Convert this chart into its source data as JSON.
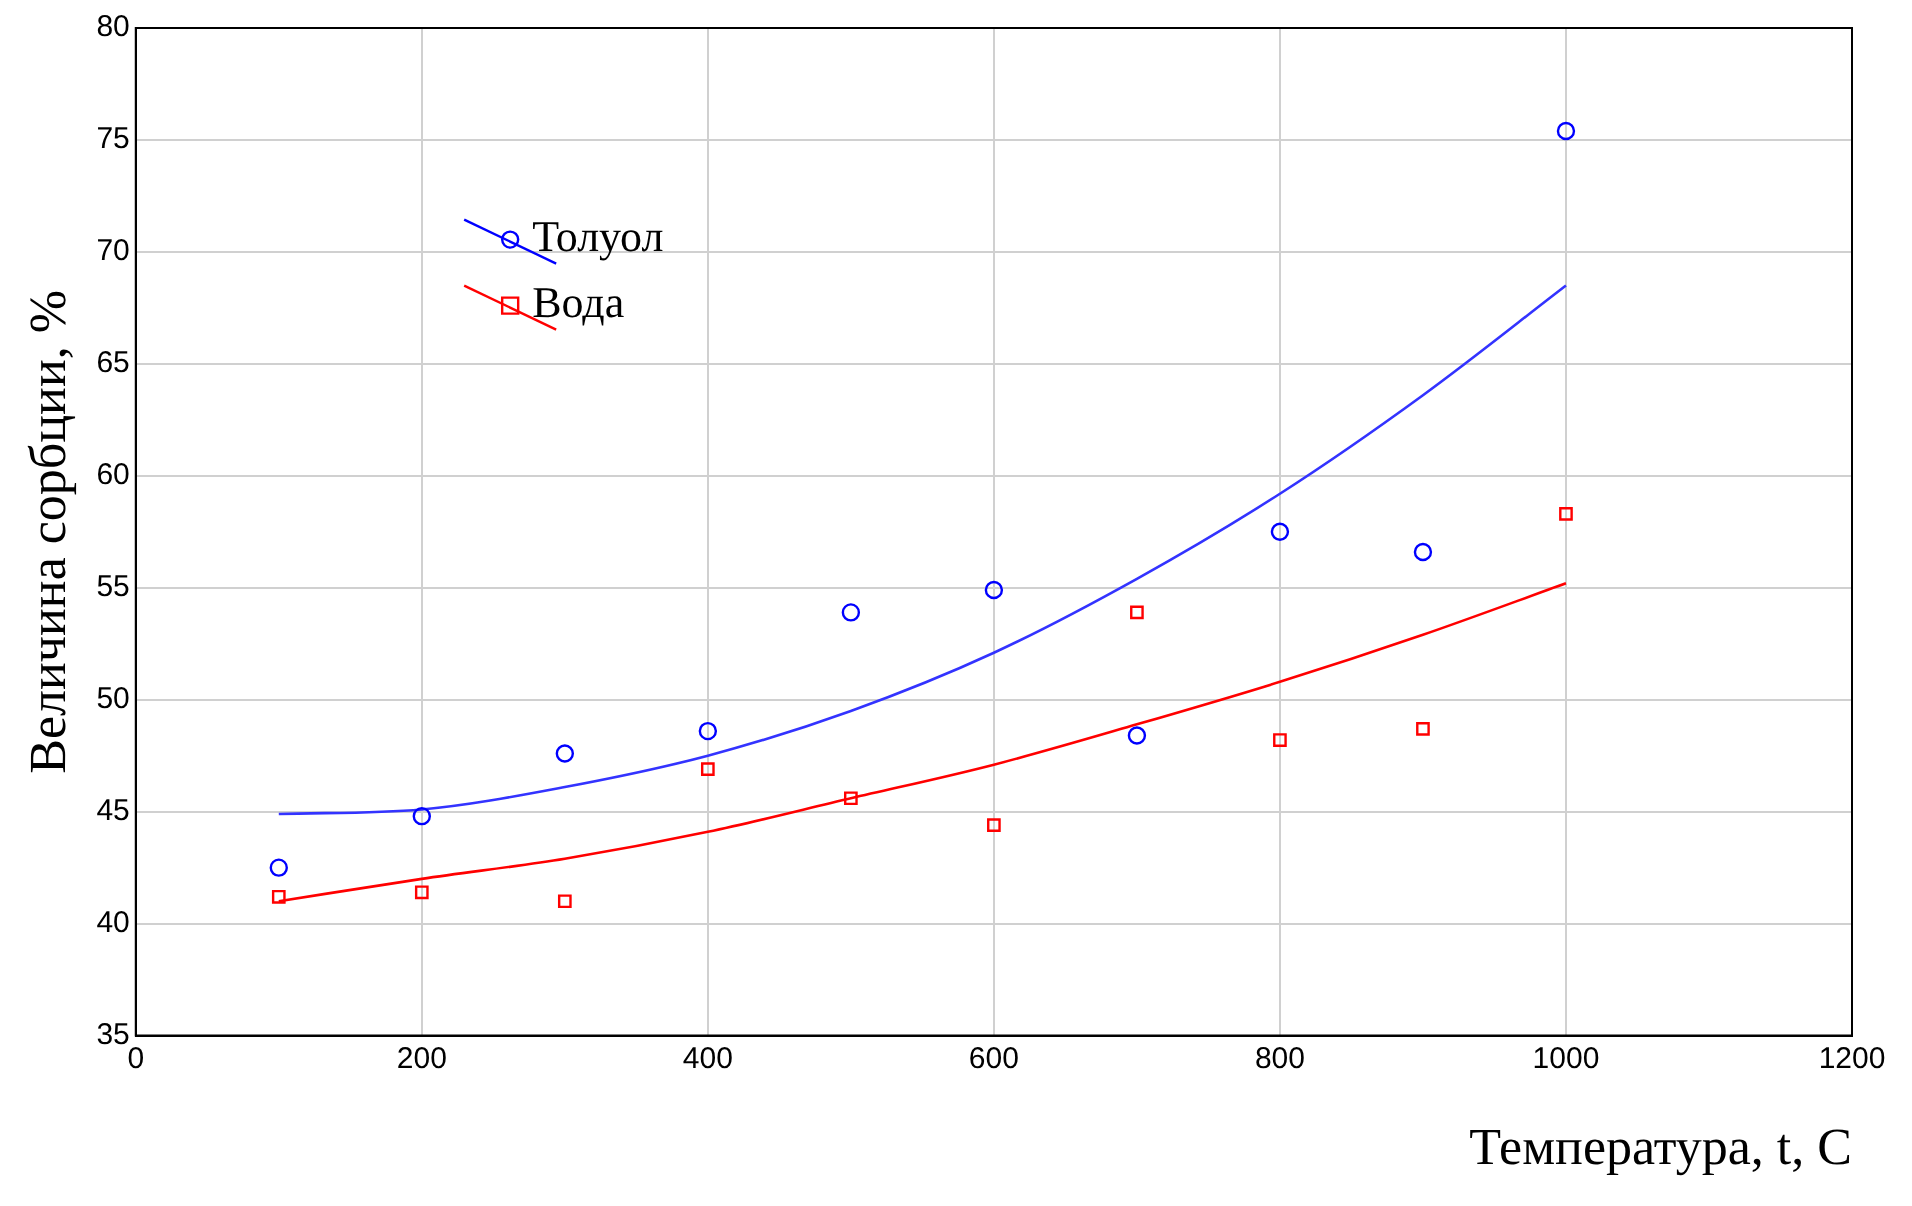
{
  "chart_data": {
    "type": "scatter",
    "xlabel": "Температура, t, C",
    "ylabel": "Величина сорбции, %",
    "xlim": [
      0,
      1200
    ],
    "xticks": [
      0,
      200,
      400,
      600,
      800,
      1000,
      1200
    ],
    "ylim": [
      35,
      80
    ],
    "yticks": [
      35,
      40,
      45,
      50,
      55,
      60,
      65,
      70,
      75,
      80
    ],
    "grid": true,
    "legend": "top left",
    "x": [
      100,
      200,
      300,
      400,
      500,
      600,
      700,
      800,
      900,
      1000
    ],
    "series": [
      {
        "name": "Толуол",
        "type": "scatter",
        "marker": "circle",
        "color": "#0000ff",
        "values": [
          42.5,
          44.8,
          47.6,
          48.6,
          53.9,
          54.9,
          48.4,
          57.5,
          56.6,
          75.4
        ]
      },
      {
        "name": "Вода",
        "type": "scatter",
        "marker": "square",
        "color": "#ff0000",
        "values": [
          41.2,
          41.4,
          41.0,
          46.9,
          45.6,
          44.4,
          53.9,
          48.2,
          48.7,
          58.3
        ]
      },
      {
        "type": "line",
        "marker": "none",
        "color": "#3333ff",
        "values": [
          44.9,
          45.1,
          46.1,
          47.5,
          49.5,
          52.1,
          55.4,
          59.2,
          63.6,
          68.5
        ]
      },
      {
        "type": "line",
        "marker": "none",
        "color": "#ff0000",
        "values": [
          41.0,
          42.0,
          42.9,
          44.1,
          45.6,
          47.1,
          48.9,
          50.8,
          52.9,
          55.2
        ]
      }
    ]
  }
}
